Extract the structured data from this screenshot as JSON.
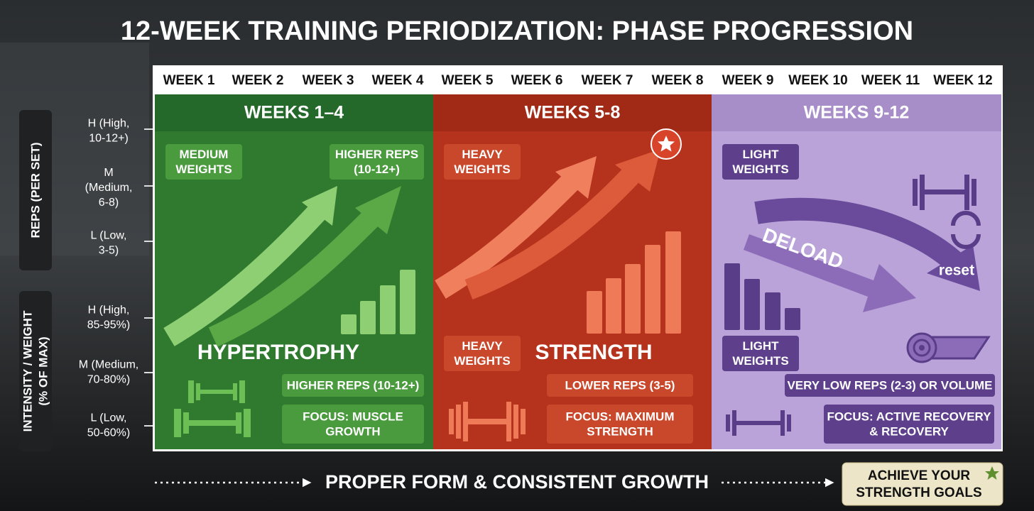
{
  "header": {
    "title": "12-WEEK TRAINING PERIODIZATION: PHASE PROGRESSION"
  },
  "axes": {
    "reps": {
      "title": "REPS (PER SET)",
      "levels": [
        [
          "H (High,",
          "10-12+)"
        ],
        [
          "M",
          "(Medium,",
          "6-8)"
        ],
        [
          "L (Low,",
          "3-5)"
        ]
      ]
    },
    "intensity": {
      "title": [
        "INTENSITY / WEIGHT",
        "(% OF MAX)"
      ],
      "levels": [
        [
          "H (High,",
          "85-95%)"
        ],
        [
          "M (Medium,",
          "70-80%)"
        ],
        [
          "L (Low,",
          "50-60%)"
        ]
      ]
    }
  },
  "weeks": [
    "WEEK 1",
    "WEEK 2",
    "WEEK 3",
    "WEEK 4",
    "WEEK 5",
    "WEEK 6",
    "WEEK 7",
    "WEEK 8",
    "WEEK 9",
    "WEEK 10",
    "WEEK 11",
    "WEEK 12"
  ],
  "phases": [
    {
      "header": "WEEKS 1–4",
      "name": "HYPERTROPHY",
      "tags": [
        [
          "MEDIUM",
          "WEIGHTS"
        ],
        [
          "HIGHER REPS",
          "(10-12+)"
        ]
      ],
      "reps": "HIGHER REPS (10-12+)",
      "focus": [
        "FOCUS: MUSCLE",
        "GROWTH"
      ]
    },
    {
      "header": "WEEKS 5-8",
      "name": "STRENGTH",
      "tags": [
        [
          "HEAVY",
          "WEIGHTS"
        ],
        [
          "HEAVY",
          "WEIGHTS"
        ]
      ],
      "reps": "LOWER REPS (3-5)",
      "focus": [
        "FOCUS: MAXIMUM",
        "STRENGTH"
      ]
    },
    {
      "header": "WEEKS 9-12",
      "name": "DELOAD",
      "note": "reset",
      "tags": [
        [
          "LIGHT",
          "WEIGHTS"
        ],
        [
          "LIGHT",
          "WEIGHTS"
        ]
      ],
      "reps": "VERY LOW REPS (2-3) OR VOLUME",
      "focus": [
        "FOCUS: ACTIVE RECOVERY",
        "& RECOVERY"
      ]
    }
  ],
  "footer": {
    "motto": "PROPER FORM & CONSISTENT GROWTH",
    "goal": [
      "ACHIEVE YOUR",
      "STRENGTH GOALS"
    ]
  }
}
